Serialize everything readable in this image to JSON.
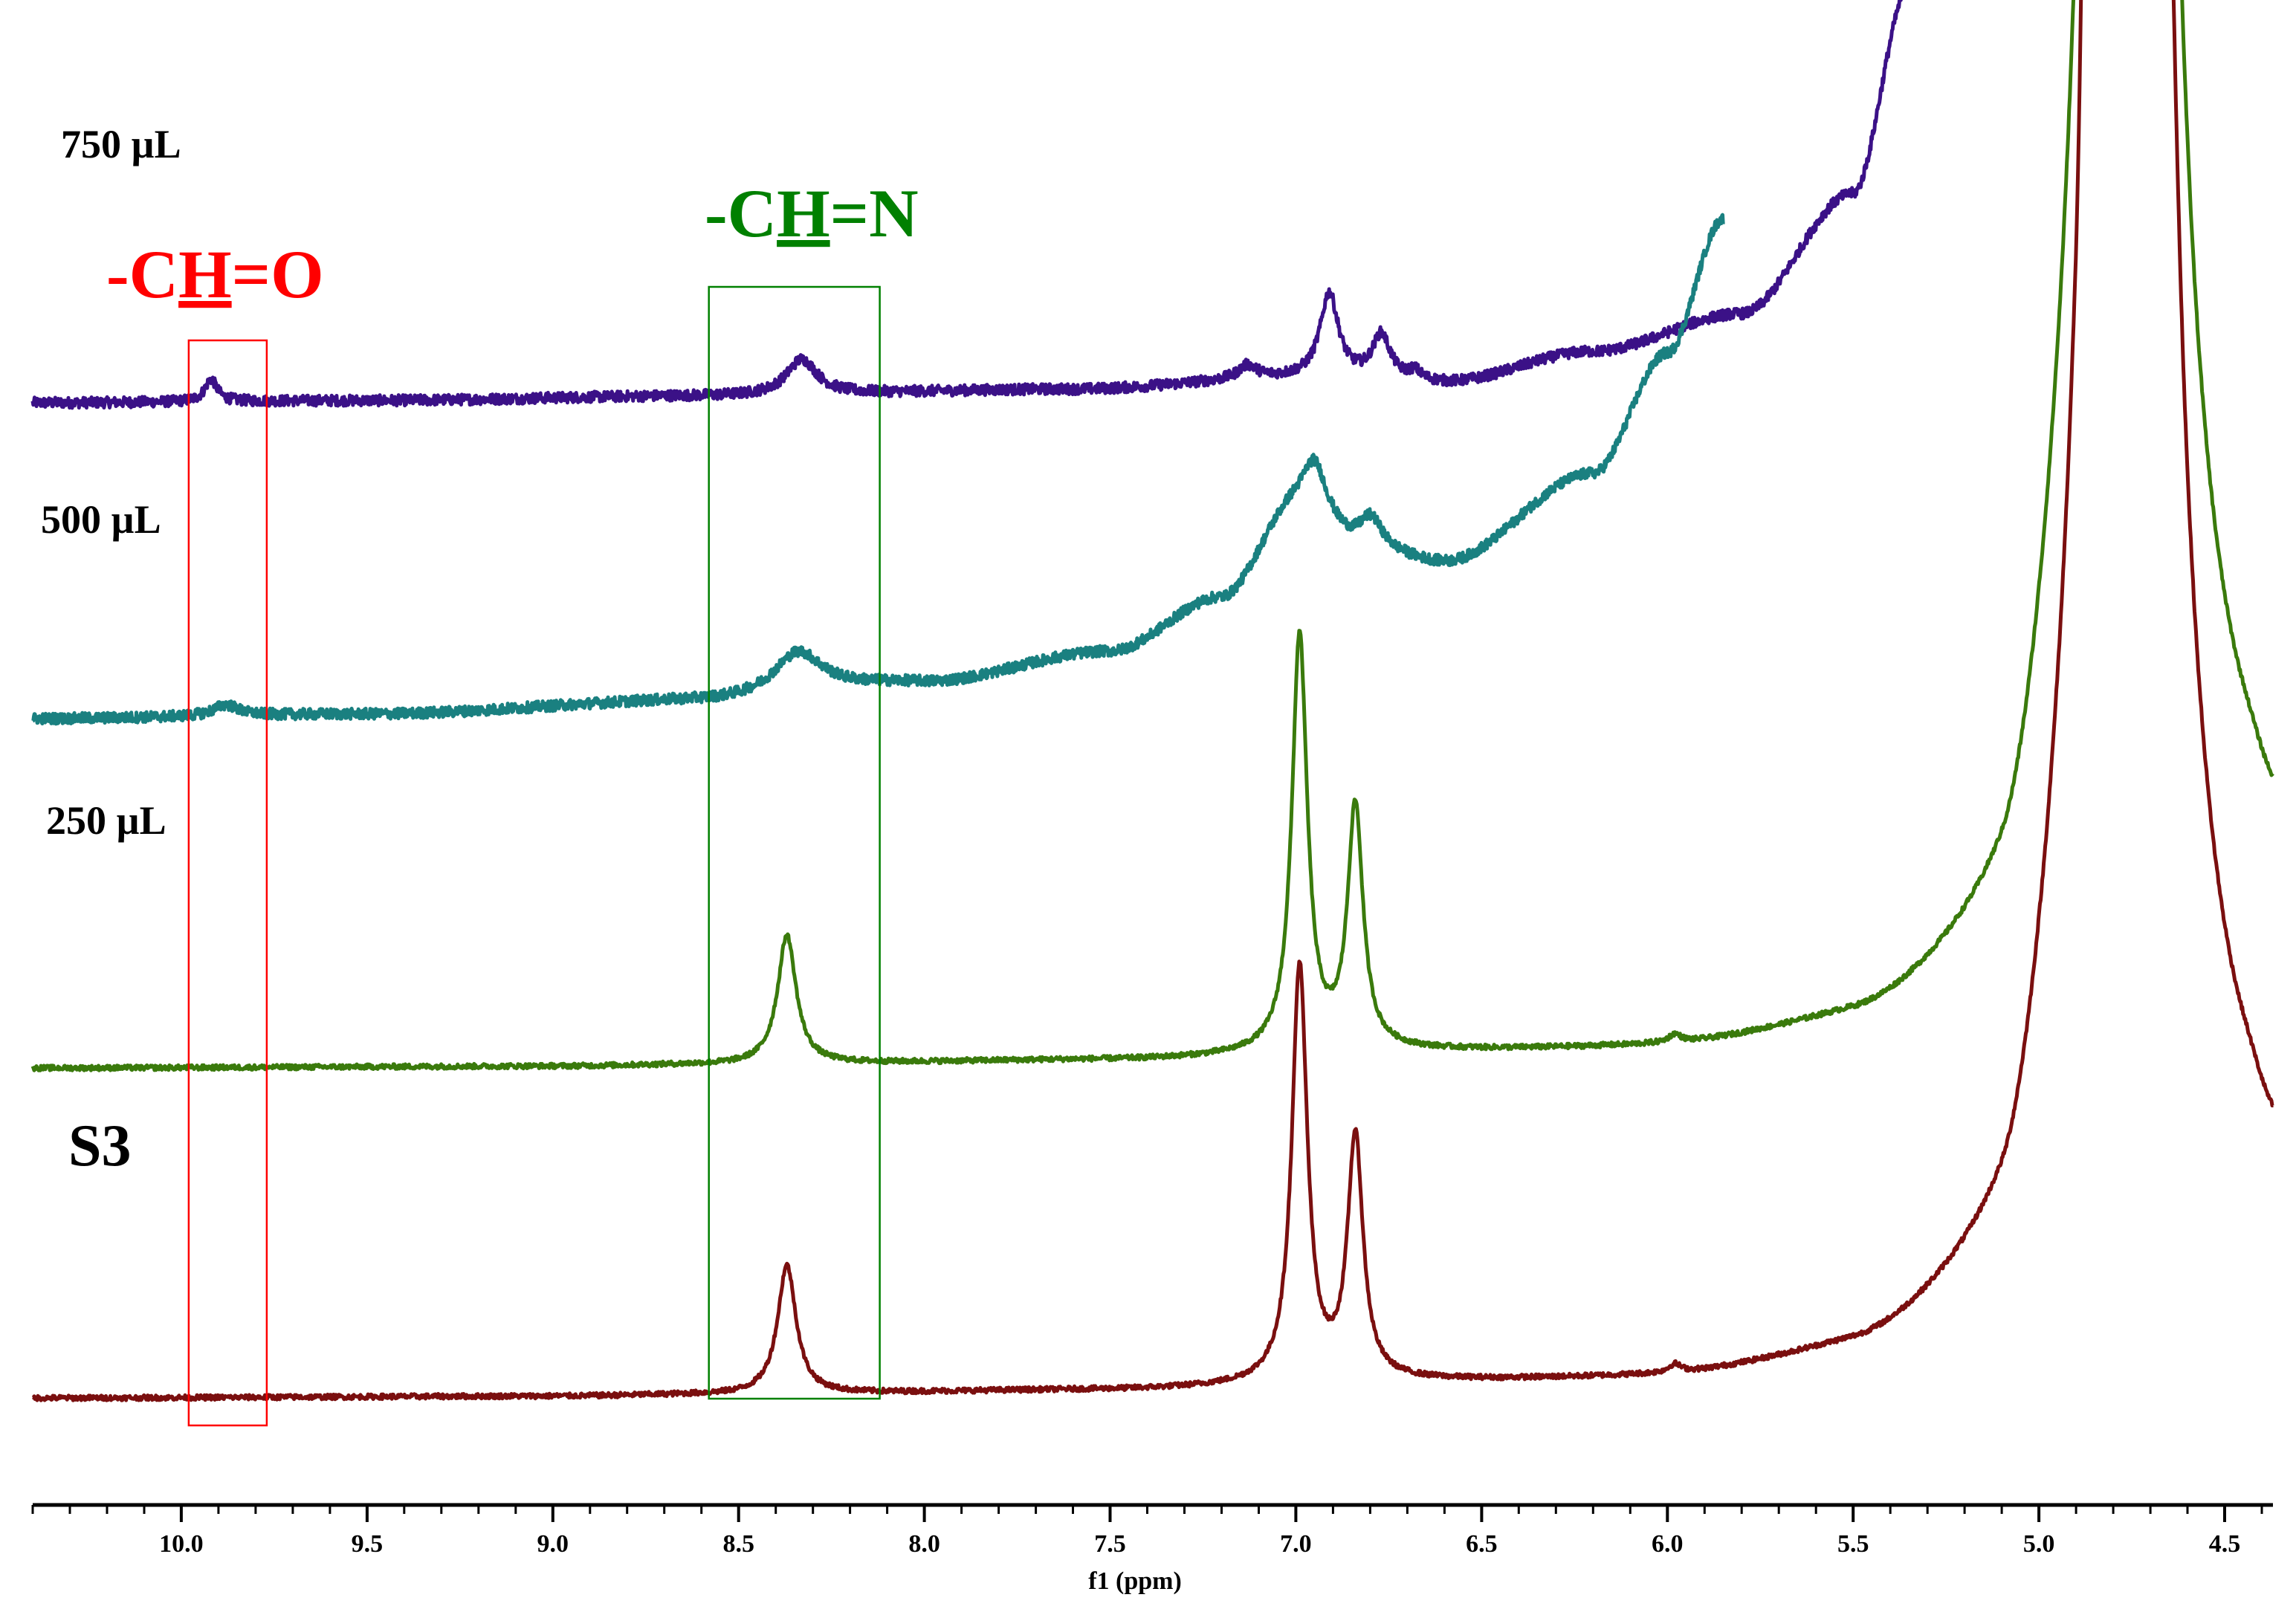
{
  "chart_data": {
    "type": "line",
    "title": "",
    "xlabel": "f1 (ppm)",
    "ylabel": "",
    "xlim": [
      10.4,
      4.37
    ],
    "x_reversed": true,
    "grid": false,
    "x_ticks": [
      "10.0",
      "9.5",
      "9.0",
      "8.5",
      "8.0",
      "7.5",
      "7.0",
      "6.5",
      "6.0",
      "5.5",
      "5.0",
      "4.5"
    ],
    "x_tick_values": [
      10.0,
      9.5,
      9.0,
      8.5,
      8.0,
      7.5,
      7.0,
      6.5,
      6.0,
      5.5,
      5.0,
      4.5
    ],
    "series": [
      {
        "name": "750 µL",
        "color": "#3b1187",
        "baseline_ppm": [
          10.4,
          9.5,
          8.6,
          7.6,
          7.0,
          6.6,
          6.2,
          5.8,
          5.5,
          5.35
        ],
        "baseline_level": [
          0.03,
          0.035,
          0.045,
          0.06,
          0.085,
          0.075,
          0.145,
          0.23,
          0.5,
          0.96
        ],
        "peaks": [
          {
            "ppm": 9.92,
            "height": 0.05,
            "width": 0.02
          },
          {
            "ppm": 8.33,
            "height": 0.08,
            "width": 0.05
          },
          {
            "ppm": 7.13,
            "height": 0.03,
            "width": 0.03
          },
          {
            "ppm": 6.91,
            "height": 0.19,
            "width": 0.03
          },
          {
            "ppm": 6.77,
            "height": 0.1,
            "width": 0.03
          },
          {
            "ppm": 6.68,
            "height": 0.02,
            "width": 0.02
          }
        ],
        "label": "750 µL"
      },
      {
        "name": "500 µL",
        "color": "#1a8080",
        "baseline_ppm": [
          10.4,
          9.5,
          8.6,
          8.0,
          7.5,
          7.2,
          7.0,
          6.8,
          6.6,
          6.2,
          6.0,
          5.85
        ],
        "baseline_level": [
          0.03,
          0.04,
          0.07,
          0.11,
          0.18,
          0.3,
          0.5,
          0.4,
          0.38,
          0.58,
          0.85,
          1.15
        ],
        "peaks": [
          {
            "ppm": 9.88,
            "height": 0.025,
            "width": 0.04
          },
          {
            "ppm": 8.34,
            "height": 0.095,
            "width": 0.08
          },
          {
            "ppm": 6.95,
            "height": 0.12,
            "width": 0.04
          },
          {
            "ppm": 6.8,
            "height": 0.08,
            "width": 0.04
          }
        ],
        "label": "500 µL"
      },
      {
        "name": "250 µL",
        "color": "#3a7a0c",
        "baseline_ppm": [
          10.4,
          9.0,
          8.6,
          7.5,
          6.7,
          6.0,
          5.5,
          5.1,
          4.9,
          4.85,
          4.6,
          4.45,
          4.37
        ],
        "baseline_level": [
          0.0,
          0.003,
          0.006,
          0.015,
          0.03,
          0.03,
          0.06,
          0.15,
          0.5,
          1.5,
          0.45,
          0.42,
          0.38
        ],
        "peaks": [
          {
            "ppm": 8.37,
            "height": 0.31,
            "width": 0.03
          },
          {
            "ppm": 6.99,
            "height": 1.0,
            "width": 0.025
          },
          {
            "ppm": 6.84,
            "height": 0.58,
            "width": 0.025
          },
          {
            "ppm": 5.98,
            "height": 0.02,
            "width": 0.02
          },
          {
            "ppm": 4.76,
            "height": 20.0,
            "width": 0.05
          }
        ],
        "label": "250 µL"
      },
      {
        "name": "S3",
        "color": "#7a0f0f",
        "baseline_ppm": [
          10.4,
          9.0,
          8.6,
          7.5,
          6.7,
          6.0,
          5.5,
          5.1,
          4.9,
          4.85,
          4.6,
          4.45,
          4.37
        ],
        "baseline_level": [
          0.0,
          0.003,
          0.006,
          0.015,
          0.03,
          0.03,
          0.06,
          0.15,
          0.5,
          1.5,
          0.45,
          0.42,
          0.38
        ],
        "peaks": [
          {
            "ppm": 8.37,
            "height": 0.31,
            "width": 0.03
          },
          {
            "ppm": 6.99,
            "height": 1.0,
            "width": 0.025
          },
          {
            "ppm": 6.84,
            "height": 0.58,
            "width": 0.025
          },
          {
            "ppm": 5.98,
            "height": 0.02,
            "width": 0.02
          },
          {
            "ppm": 4.76,
            "height": 20.0,
            "width": 0.05
          }
        ],
        "label": "S3"
      }
    ],
    "annotations": [
      {
        "text_prefix": "-C",
        "text_emph": "H",
        "text_suffix": "=O",
        "color": "#ff0000",
        "box_ppm": [
          9.98,
          9.77
        ]
      },
      {
        "text_prefix": "-C",
        "text_emph": "H",
        "text_suffix": "=N",
        "color": "#008000",
        "box_ppm": [
          8.58,
          8.12
        ]
      }
    ]
  }
}
